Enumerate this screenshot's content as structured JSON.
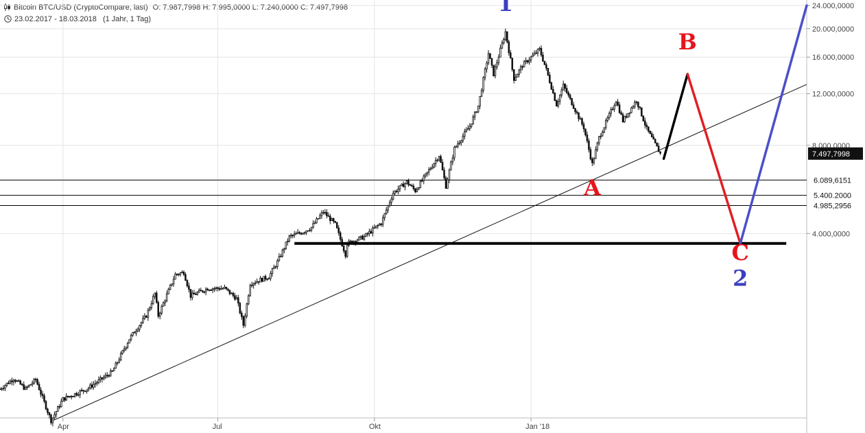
{
  "header": {
    "instrument": "Bitcoin BTC/USD (CryptoCompare, last)",
    "ohlc": "O: 7.987,7998  H: 7.995,0000  L: 7.240,0000  C: 7.497,7998",
    "period": "23.02.2017 - 18.03.2018",
    "resolution": "(1 Jahr, 1 Tag)",
    "chart_icon": "candlestick-icon",
    "clock_icon": "clock-icon"
  },
  "colors": {
    "candles": "#111111",
    "wave_label_blue": "#3a3fbf",
    "wave_label_red": "#e8141c",
    "projection_black": "#000000",
    "projection_red": "#e01e24",
    "projection_blue": "#4a4fc8",
    "price_box": "#111111",
    "grid": "#e4e4e4"
  },
  "chart_data": {
    "type": "candlestick",
    "title": "Bitcoin BTC/USD (CryptoCompare, last)",
    "y_scale": "log",
    "ylim": [
      900,
      24000
    ],
    "xlim": [
      "2017-02-23",
      "2018-06-12"
    ],
    "grid": true,
    "x_ticks": [
      {
        "date": "2017-04-01",
        "label": "Apr"
      },
      {
        "date": "2017-07-01",
        "label": "Jul"
      },
      {
        "date": "2017-10-01",
        "label": "Okt"
      },
      {
        "date": "2018-01-01",
        "label": "Jan '18"
      }
    ],
    "y_ticks": [
      {
        "value": 4000,
        "label": "4.000,0000"
      },
      {
        "value": 8000,
        "label": "8.000,0000"
      },
      {
        "value": 12000,
        "label": "12.000,0000"
      },
      {
        "value": 16000,
        "label": "16.000,0000"
      },
      {
        "value": 20000,
        "label": "20.000,0000"
      },
      {
        "value": 24000,
        "label": "24.000,0000"
      }
    ],
    "price_path": [
      [
        "2017-02-23",
        1180
      ],
      [
        "2017-03-03",
        1280
      ],
      [
        "2017-03-10",
        1180
      ],
      [
        "2017-03-16",
        1270
      ],
      [
        "2017-03-25",
        920
      ],
      [
        "2017-04-01",
        1090
      ],
      [
        "2017-04-15",
        1180
      ],
      [
        "2017-04-30",
        1350
      ],
      [
        "2017-05-10",
        1750
      ],
      [
        "2017-05-20",
        2100
      ],
      [
        "2017-05-25",
        2500
      ],
      [
        "2017-05-27",
        2100
      ],
      [
        "2017-06-06",
        2900
      ],
      [
        "2017-06-11",
        2950
      ],
      [
        "2017-06-15",
        2450
      ],
      [
        "2017-06-25",
        2600
      ],
      [
        "2017-07-05",
        2600
      ],
      [
        "2017-07-12",
        2400
      ],
      [
        "2017-07-16",
        1950
      ],
      [
        "2017-07-20",
        2700
      ],
      [
        "2017-07-31",
        2850
      ],
      [
        "2017-08-05",
        3200
      ],
      [
        "2017-08-12",
        3900
      ],
      [
        "2017-08-20",
        4050
      ],
      [
        "2017-08-25",
        4200
      ],
      [
        "2017-09-01",
        4750
      ],
      [
        "2017-09-08",
        4300
      ],
      [
        "2017-09-14",
        3400
      ],
      [
        "2017-09-15",
        3700
      ],
      [
        "2017-09-25",
        3900
      ],
      [
        "2017-10-05",
        4350
      ],
      [
        "2017-10-12",
        5500
      ],
      [
        "2017-10-20",
        6000
      ],
      [
        "2017-10-25",
        5600
      ],
      [
        "2017-11-08",
        7400
      ],
      [
        "2017-11-12",
        5800
      ],
      [
        "2017-11-17",
        7800
      ],
      [
        "2017-11-26",
        9300
      ],
      [
        "2017-12-01",
        10900
      ],
      [
        "2017-12-07",
        16500
      ],
      [
        "2017-12-10",
        14000
      ],
      [
        "2017-12-17",
        19500
      ],
      [
        "2017-12-22",
        13500
      ],
      [
        "2017-12-27",
        15000
      ],
      [
        "2018-01-06",
        17000
      ],
      [
        "2018-01-10",
        14500
      ],
      [
        "2018-01-16",
        11000
      ],
      [
        "2018-01-20",
        12800
      ],
      [
        "2018-02-01",
        9200
      ],
      [
        "2018-02-06",
        6900
      ],
      [
        "2018-02-10",
        8500
      ],
      [
        "2018-02-20",
        11400
      ],
      [
        "2018-02-24",
        9700
      ],
      [
        "2018-03-04",
        11400
      ],
      [
        "2018-03-10",
        9100
      ],
      [
        "2018-03-18",
        7497.7998
      ]
    ],
    "price_lines": [
      {
        "value": 6089.6151,
        "label": "6.089,6151",
        "boxed": false
      },
      {
        "value": 5400.2,
        "label": "5.400.2000",
        "boxed": false
      },
      {
        "value": 4985.2956,
        "label": "4.985,2956",
        "boxed": false
      }
    ],
    "last_price": {
      "value": 7497.7998,
      "label": "7.497,7998"
    },
    "support_line": {
      "value": 3700,
      "from": "2017-08-15",
      "to": "2018-05-31"
    },
    "trendline": {
      "from": [
        "2017-03-26",
        920
      ],
      "through": [
        "2018-02-06",
        6089.6151
      ]
    },
    "projection": [
      {
        "name": "A-B",
        "from": [
          "2018-03-20",
          7200
        ],
        "to": [
          "2018-04-03",
          14000
        ]
      },
      {
        "name": "B-C",
        "from": [
          "2018-04-03",
          14000
        ],
        "to": [
          "2018-05-04",
          3700
        ]
      },
      {
        "name": "C-2",
        "from": [
          "2018-05-04",
          3700
        ],
        "to": [
          "2018-06-12",
          24000
        ]
      }
    ],
    "wave_labels": [
      {
        "text": "1",
        "date": "2017-12-17",
        "price": 23000,
        "color": "blue"
      },
      {
        "text": "A",
        "date": "2018-02-06",
        "price": 5400,
        "color": "red"
      },
      {
        "text": "B",
        "date": "2018-04-03",
        "price": 17000,
        "color": "red"
      },
      {
        "text": "C",
        "date": "2018-05-04",
        "price": 3250,
        "color": "red"
      },
      {
        "text": "2",
        "date": "2018-05-04",
        "price": 2650,
        "color": "blue"
      }
    ]
  }
}
